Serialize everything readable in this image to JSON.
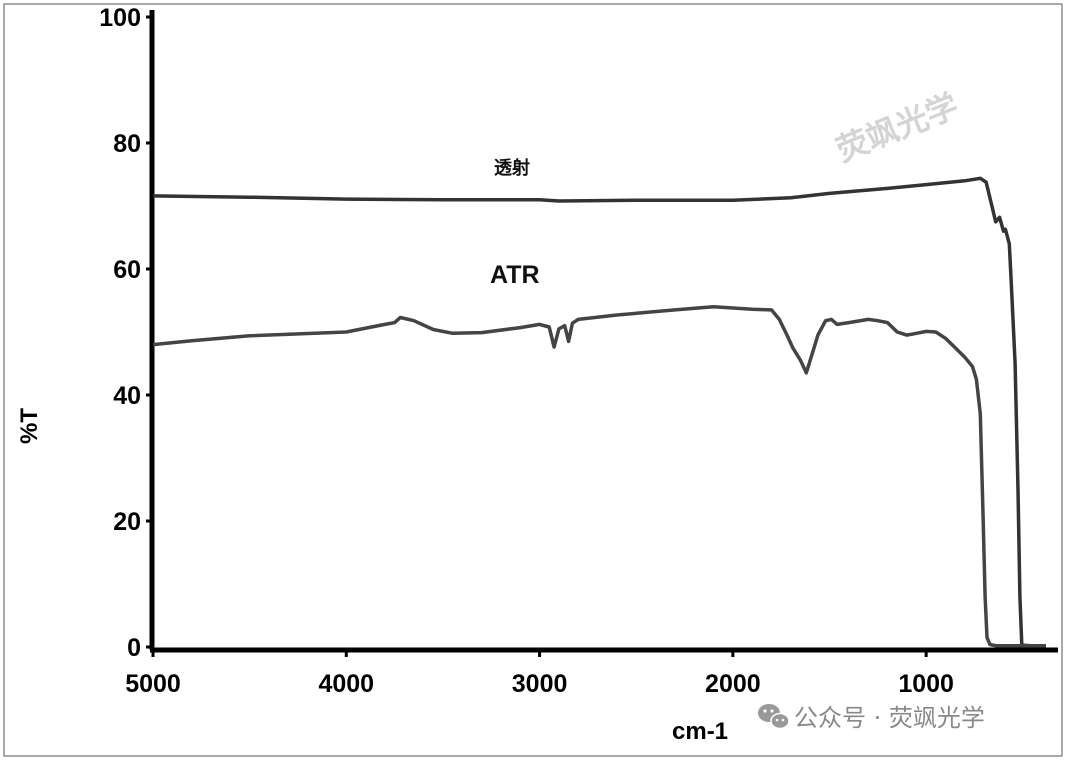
{
  "chart_data": {
    "type": "line",
    "xlabel": "cm-1",
    "ylabel": "%T",
    "xlim": [
      5000,
      380
    ],
    "ylim": [
      0,
      100
    ],
    "x_ticks": [
      5000,
      4000,
      3000,
      2000,
      1000
    ],
    "y_ticks": [
      0,
      20,
      40,
      60,
      80,
      100
    ],
    "series": [
      {
        "name": "透射",
        "color": "#333333",
        "points": [
          [
            5000,
            71.6
          ],
          [
            4500,
            71.4
          ],
          [
            4000,
            71.1
          ],
          [
            3500,
            71.0
          ],
          [
            3000,
            71.0
          ],
          [
            2900,
            70.8
          ],
          [
            2500,
            70.9
          ],
          [
            2000,
            70.9
          ],
          [
            1700,
            71.3
          ],
          [
            1500,
            72.0
          ],
          [
            1200,
            72.8
          ],
          [
            1000,
            73.4
          ],
          [
            800,
            74.0
          ],
          [
            720,
            74.4
          ],
          [
            690,
            73.8
          ],
          [
            660,
            70.0
          ],
          [
            640,
            67.5
          ],
          [
            620,
            68.2
          ],
          [
            600,
            66.0
          ],
          [
            590,
            66.3
          ],
          [
            570,
            64.0
          ],
          [
            560,
            58.0
          ],
          [
            540,
            45.0
          ],
          [
            525,
            25.0
          ],
          [
            515,
            8.0
          ],
          [
            505,
            0.3
          ],
          [
            460,
            0.2
          ],
          [
            380,
            0.2
          ]
        ]
      },
      {
        "name": "ATR",
        "color": "#444444",
        "points": [
          [
            5000,
            48.0
          ],
          [
            4800,
            48.6
          ],
          [
            4500,
            49.4
          ],
          [
            4000,
            50.0
          ],
          [
            3800,
            51.2
          ],
          [
            3750,
            51.5
          ],
          [
            3720,
            52.3
          ],
          [
            3650,
            51.8
          ],
          [
            3550,
            50.4
          ],
          [
            3450,
            49.8
          ],
          [
            3300,
            49.9
          ],
          [
            3100,
            50.7
          ],
          [
            3000,
            51.2
          ],
          [
            2950,
            50.8
          ],
          [
            2925,
            47.6
          ],
          [
            2900,
            50.5
          ],
          [
            2870,
            51.0
          ],
          [
            2850,
            48.5
          ],
          [
            2830,
            51.4
          ],
          [
            2800,
            52.0
          ],
          [
            2600,
            52.7
          ],
          [
            2300,
            53.5
          ],
          [
            2100,
            54.0
          ],
          [
            1900,
            53.6
          ],
          [
            1800,
            53.5
          ],
          [
            1760,
            52.0
          ],
          [
            1720,
            49.5
          ],
          [
            1690,
            47.5
          ],
          [
            1650,
            45.5
          ],
          [
            1620,
            43.5
          ],
          [
            1590,
            46.5
          ],
          [
            1560,
            49.5
          ],
          [
            1520,
            51.8
          ],
          [
            1490,
            52.0
          ],
          [
            1460,
            51.2
          ],
          [
            1400,
            51.5
          ],
          [
            1300,
            52.0
          ],
          [
            1250,
            51.8
          ],
          [
            1200,
            51.5
          ],
          [
            1150,
            50.0
          ],
          [
            1100,
            49.5
          ],
          [
            1050,
            49.8
          ],
          [
            1000,
            50.1
          ],
          [
            950,
            50.0
          ],
          [
            900,
            49.0
          ],
          [
            850,
            47.5
          ],
          [
            800,
            46.0
          ],
          [
            760,
            44.5
          ],
          [
            740,
            42.5
          ],
          [
            720,
            37.0
          ],
          [
            705,
            20.0
          ],
          [
            695,
            8.0
          ],
          [
            685,
            1.5
          ],
          [
            670,
            0.4
          ],
          [
            640,
            0.2
          ],
          [
            380,
            0.2
          ]
        ]
      }
    ],
    "annotations": [
      "透射",
      "ATR"
    ]
  },
  "watermark": {
    "text": "荧飒光学",
    "footer_text": "公众号 · 荧飒光学"
  }
}
